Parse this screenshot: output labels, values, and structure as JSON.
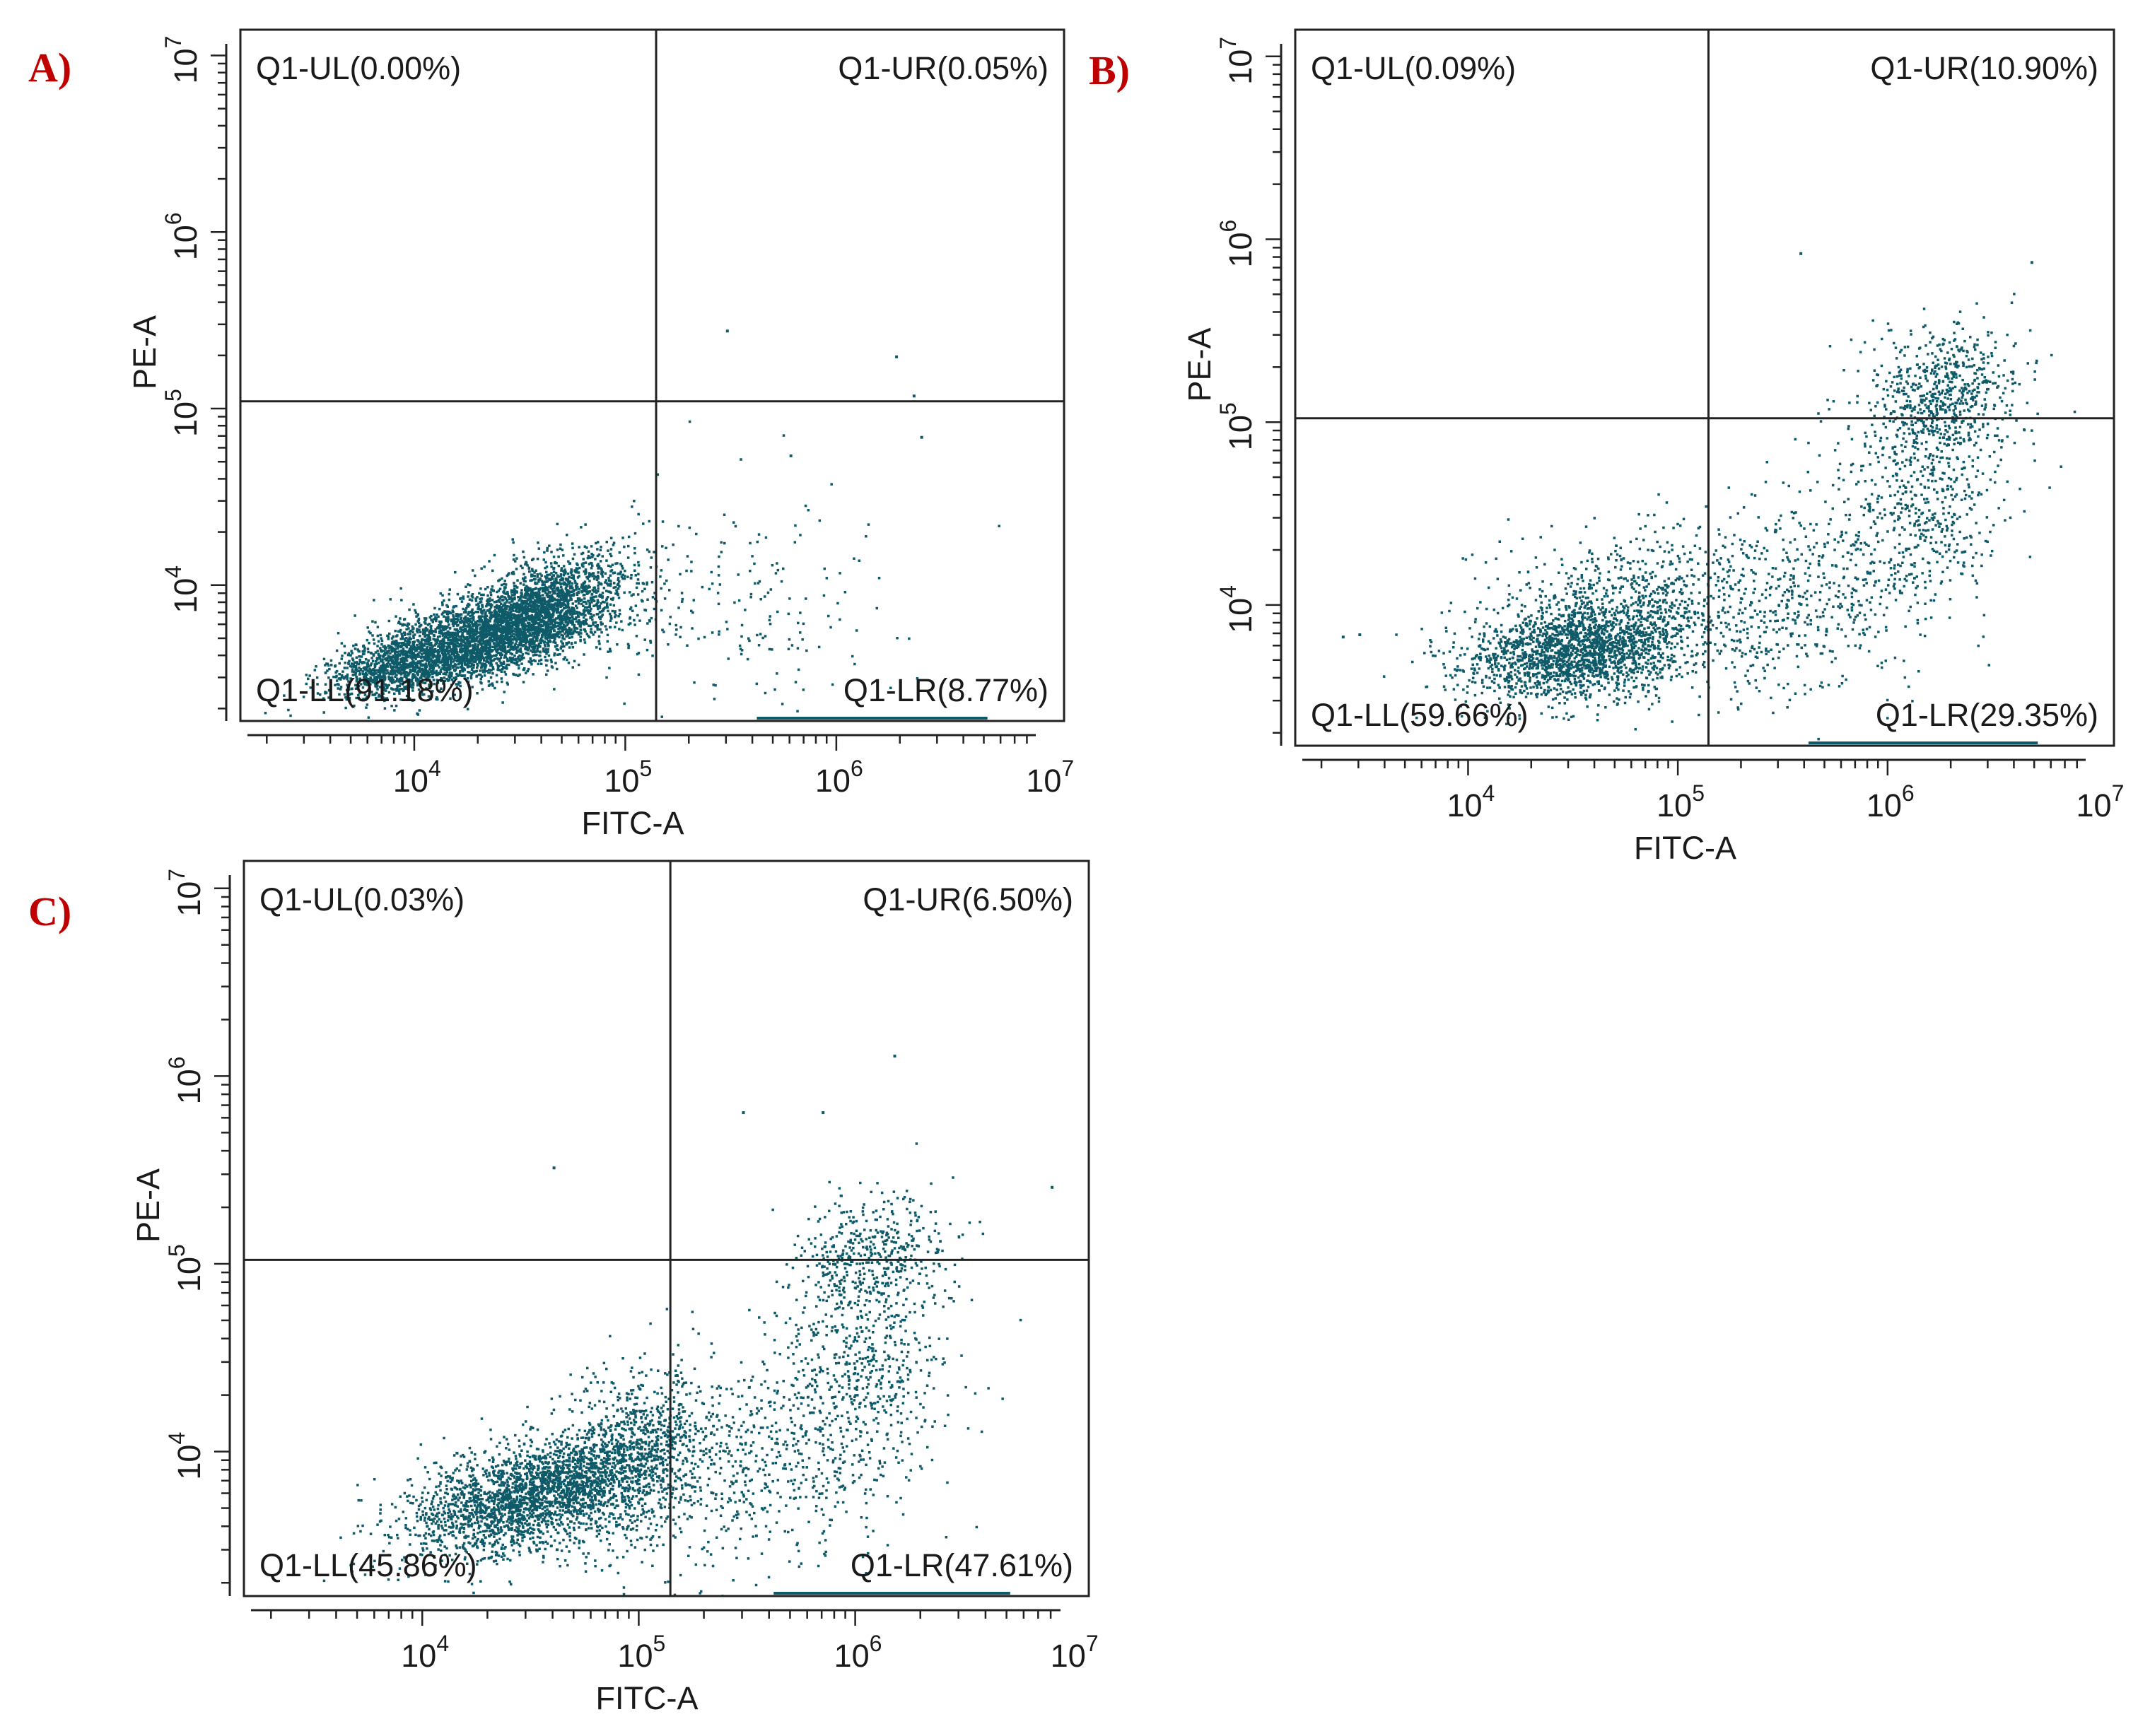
{
  "figure": {
    "palette": {
      "dots": "#0f5a68",
      "frame": "#222222",
      "panel_letter": "#c00000"
    }
  },
  "chart_data": [
    {
      "panel": "A)",
      "type": "scatter",
      "title": "",
      "xlabel": "FITC-A",
      "ylabel": "PE-A",
      "x_scale": "log",
      "y_scale": "log",
      "xlim": [
        1500,
        12000000
      ],
      "ylim": [
        1700,
        14000000
      ],
      "x_ticks": [
        {
          "base": "10",
          "exp": "4"
        },
        {
          "base": "10",
          "exp": "5"
        },
        {
          "base": "10",
          "exp": "6"
        },
        {
          "base": "10",
          "exp": "7"
        }
      ],
      "y_ticks": [
        {
          "base": "10",
          "exp": "4"
        },
        {
          "base": "10",
          "exp": "5"
        },
        {
          "base": "10",
          "exp": "6"
        },
        {
          "base": "10",
          "exp": "7"
        }
      ],
      "gate": {
        "x": 140000,
        "y": 110000
      },
      "quadrants": {
        "ul": "Q1-UL(0.00%)",
        "ur": "Q1-UR(0.05%)",
        "ll": "Q1-LL(91.18%)",
        "lr": "Q1-LR(8.77%)"
      },
      "percentages": {
        "ul": 0.0,
        "ur": 0.05,
        "ll": 91.18,
        "lr": 8.77
      },
      "clusters": [
        {
          "x": 22000,
          "y": 5200,
          "sx": 0.28,
          "sy": 0.14,
          "rho": 0.55,
          "n": 3400
        },
        {
          "x": 45000,
          "y": 9000,
          "sx": 0.18,
          "sy": 0.14,
          "rho": 0.4,
          "n": 900
        },
        {
          "x": 8000,
          "y": 3400,
          "sx": 0.15,
          "sy": 0.08,
          "rho": 0.3,
          "n": 700
        },
        {
          "x": 320000,
          "y": 7500,
          "sx": 0.35,
          "sy": 0.28,
          "rho": 0,
          "n": 200
        }
      ],
      "outliers": [
        {
          "x": 300000,
          "y": 280000
        },
        {
          "x": 1900000,
          "y": 200000
        },
        {
          "x": 2300000,
          "y": 120000
        },
        {
          "x": 600000,
          "y": 55000
        },
        {
          "x": 2500000,
          "y": 70000
        }
      ]
    },
    {
      "panel": "B)",
      "type": "scatter",
      "title": "",
      "xlabel": "FITC-A",
      "ylabel": "PE-A",
      "x_scale": "log",
      "y_scale": "log",
      "xlim": [
        1500,
        12000000
      ],
      "ylim": [
        1700,
        14000000
      ],
      "x_ticks": [
        {
          "base": "10",
          "exp": "4"
        },
        {
          "base": "10",
          "exp": "5"
        },
        {
          "base": "10",
          "exp": "6"
        },
        {
          "base": "10",
          "exp": "7"
        }
      ],
      "y_ticks": [
        {
          "base": "10",
          "exp": "4"
        },
        {
          "base": "10",
          "exp": "5"
        },
        {
          "base": "10",
          "exp": "6"
        },
        {
          "base": "10",
          "exp": "7"
        }
      ],
      "gate": {
        "x": 140000,
        "y": 105000
      },
      "quadrants": {
        "ul": "Q1-UL(0.09%)",
        "ur": "Q1-UR(10.90%)",
        "ll": "Q1-LL(59.66%)",
        "lr": "Q1-LR(29.35%)"
      },
      "percentages": {
        "ul": 0.09,
        "ur": 10.9,
        "ll": 59.66,
        "lr": 29.35
      },
      "clusters": [
        {
          "x": 32000,
          "y": 5500,
          "sx": 0.26,
          "sy": 0.13,
          "rho": 0.25,
          "n": 1700
        },
        {
          "x": 60000,
          "y": 9500,
          "sx": 0.32,
          "sy": 0.22,
          "rho": 0.2,
          "n": 800
        },
        {
          "x": 1800000,
          "y": 140000,
          "sx": 0.18,
          "sy": 0.2,
          "rho": 0.2,
          "n": 650
        },
        {
          "x": 1500000,
          "y": 35000,
          "sx": 0.2,
          "sy": 0.3,
          "rho": 0.1,
          "n": 450
        },
        {
          "x": 400000,
          "y": 12000,
          "sx": 0.3,
          "sy": 0.35,
          "rho": 0.3,
          "n": 550
        }
      ],
      "outliers": [
        {
          "x": 380000,
          "y": 850000
        },
        {
          "x": 4800000,
          "y": 760000
        },
        {
          "x": 3000,
          "y": 7000
        },
        {
          "x": 2500,
          "y": 6800
        }
      ]
    },
    {
      "panel": "C)",
      "type": "scatter",
      "title": "",
      "xlabel": "FITC-A",
      "ylabel": "PE-A",
      "x_scale": "log",
      "y_scale": "log",
      "xlim": [
        1500,
        12000000
      ],
      "ylim": [
        1700,
        14000000
      ],
      "x_ticks": [
        {
          "base": "10",
          "exp": "4"
        },
        {
          "base": "10",
          "exp": "5"
        },
        {
          "base": "10",
          "exp": "6"
        },
        {
          "base": "10",
          "exp": "7"
        }
      ],
      "y_ticks": [
        {
          "base": "10",
          "exp": "4"
        },
        {
          "base": "10",
          "exp": "5"
        },
        {
          "base": "10",
          "exp": "6"
        },
        {
          "base": "10",
          "exp": "7"
        }
      ],
      "gate": {
        "x": 140000,
        "y": 105000
      },
      "quadrants": {
        "ul": "Q1-UL(0.03%)",
        "ur": "Q1-UR(6.50%)",
        "ll": "Q1-LL(45.86%)",
        "lr": "Q1-LR(47.61%)"
      },
      "percentages": {
        "ul": 0.03,
        "ur": 6.5,
        "ll": 45.86,
        "lr": 47.61
      },
      "clusters": [
        {
          "x": 30000,
          "y": 5800,
          "sx": 0.28,
          "sy": 0.16,
          "rho": 0.45,
          "n": 2200
        },
        {
          "x": 90000,
          "y": 9000,
          "sx": 0.2,
          "sy": 0.22,
          "rho": 0.3,
          "n": 1100
        },
        {
          "x": 1200000,
          "y": 110000,
          "sx": 0.18,
          "sy": 0.18,
          "rho": 0.2,
          "n": 450
        },
        {
          "x": 1100000,
          "y": 30000,
          "sx": 0.2,
          "sy": 0.3,
          "rho": 0.1,
          "n": 400
        },
        {
          "x": 450000,
          "y": 10000,
          "sx": 0.35,
          "sy": 0.35,
          "rho": 0.3,
          "n": 650
        }
      ],
      "outliers": [
        {
          "x": 40000,
          "y": 330000
        },
        {
          "x": 1500000,
          "y": 1300000
        },
        {
          "x": 700000,
          "y": 650000
        },
        {
          "x": 300000,
          "y": 650000
        },
        {
          "x": 8000000,
          "y": 260000
        }
      ]
    }
  ]
}
